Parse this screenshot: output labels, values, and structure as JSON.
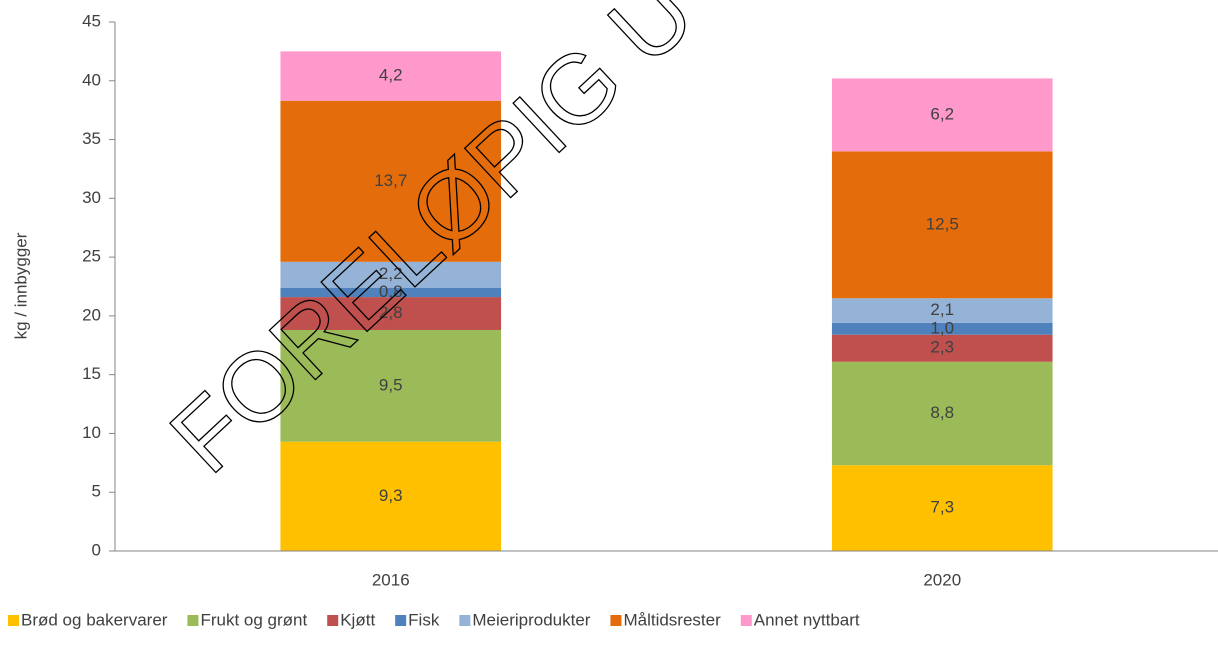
{
  "chart_data": {
    "type": "stacked_bar",
    "watermark": "FORELØPIG U",
    "ylabel": "kg / innbygger",
    "categories": [
      "2016",
      "2020"
    ],
    "series": [
      {
        "name": "Brød og bakervarer",
        "color": "#ffc000",
        "values": [
          9.3,
          7.3
        ],
        "value_labels": [
          "9,3",
          "7,3"
        ]
      },
      {
        "name": "Frukt og grønt",
        "color": "#9bbb59",
        "values": [
          9.5,
          8.8
        ],
        "value_labels": [
          "9,5",
          "8,8"
        ]
      },
      {
        "name": "Kjøtt",
        "color": "#c0504d",
        "values": [
          2.8,
          2.3
        ],
        "value_labels": [
          "2,8",
          "2,3"
        ]
      },
      {
        "name": "Fisk",
        "color": "#4f81bd",
        "values": [
          0.8,
          1.0
        ],
        "value_labels": [
          "0,8",
          "1,0"
        ]
      },
      {
        "name": "Meieriprodukter",
        "color": "#95b3d7",
        "values": [
          2.2,
          2.1
        ],
        "value_labels": [
          "2,2",
          "2,1"
        ]
      },
      {
        "name": "Måltidsrester",
        "color": "#e46c0a",
        "values": [
          13.7,
          12.5
        ],
        "value_labels": [
          "13,7",
          "12,5"
        ]
      },
      {
        "name": "Annet nyttbart",
        "color": "#ff99cc",
        "values": [
          4.2,
          6.2
        ],
        "value_labels": [
          "4,2",
          "6,2"
        ]
      }
    ],
    "ylim": [
      0,
      45
    ],
    "yticks": [
      0,
      5,
      10,
      15,
      20,
      25,
      30,
      35,
      40,
      45
    ],
    "grid": false,
    "legend": "bottom"
  }
}
